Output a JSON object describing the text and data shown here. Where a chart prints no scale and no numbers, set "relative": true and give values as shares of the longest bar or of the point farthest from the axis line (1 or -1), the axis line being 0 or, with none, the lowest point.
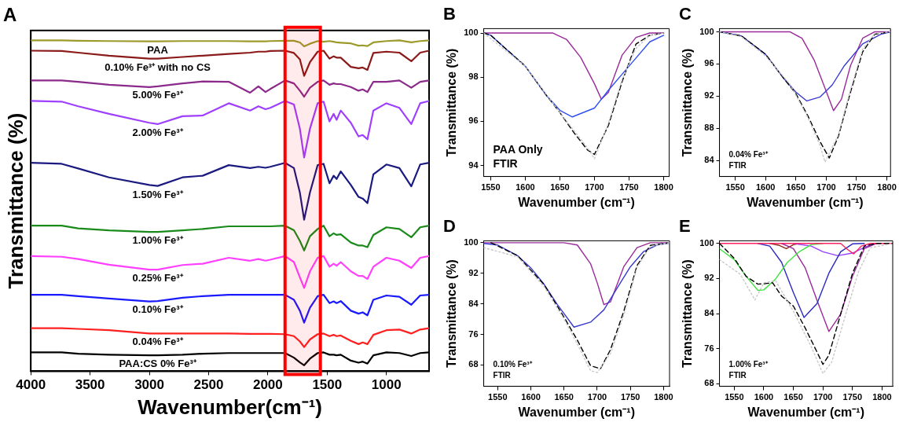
{
  "chart_data": [
    {
      "type": "line",
      "title": "A",
      "xlabel": "Wavenumber(cm⁻¹)",
      "ylabel": "Transmittance (%)",
      "relative": true,
      "tick_labels": "x",
      "grid": false,
      "legend": false,
      "marker": "none",
      "xlim": [
        4000,
        640
      ],
      "xticks": [
        4000,
        3500,
        3000,
        2500,
        2000,
        1500,
        1000
      ],
      "bands": [
        {
          "axis": "x",
          "from": 1855,
          "to": 1557,
          "color": "#ff0000"
        }
      ],
      "x": [
        4000,
        3740,
        3600,
        3340,
        3000,
        2930,
        2720,
        2550,
        2330,
        2150,
        2080,
        2020,
        1980,
        1855,
        1780,
        1730,
        1694,
        1645,
        1580,
        1530,
        1480,
        1445,
        1420,
        1385,
        1300,
        1235,
        1200,
        1160,
        1110,
        1000,
        890,
        790,
        715,
        640
      ],
      "series": [
        {
          "name": "PAA",
          "color": "#9c9a2a",
          "values": [
            1.0,
            1.0,
            0.999,
            0.998,
            0.997,
            0.997,
            0.998,
            0.998,
            0.998,
            0.997,
            0.997,
            0.997,
            0.998,
            0.999,
            0.999,
            0.994,
            0.982,
            0.99,
            0.998,
            0.996,
            0.998,
            0.996,
            0.994,
            0.993,
            0.991,
            0.984,
            0.985,
            0.983,
            0.994,
            0.998,
            1.0,
            0.994,
            0.998,
            1.0
          ]
        },
        {
          "name": "0.10% Fe³⁺ with no CS",
          "color": "#8b1a1a",
          "values": [
            0.969,
            0.968,
            0.963,
            0.954,
            0.945,
            0.945,
            0.95,
            0.954,
            0.959,
            0.963,
            0.966,
            0.966,
            0.968,
            0.969,
            0.962,
            0.943,
            0.893,
            0.934,
            0.966,
            0.969,
            0.945,
            0.952,
            0.948,
            0.948,
            0.92,
            0.916,
            0.918,
            0.911,
            0.962,
            0.966,
            0.963,
            0.937,
            0.963,
            0.969
          ]
        },
        {
          "name": "5.00% Fe³⁺",
          "color": "#8b2a8b",
          "values": [
            0.879,
            0.879,
            0.875,
            0.866,
            0.859,
            0.861,
            0.87,
            0.876,
            0.875,
            0.842,
            0.861,
            0.844,
            0.853,
            0.879,
            0.87,
            0.848,
            0.83,
            0.857,
            0.875,
            0.879,
            0.866,
            0.87,
            0.868,
            0.868,
            0.859,
            0.848,
            0.852,
            0.844,
            0.875,
            0.875,
            0.879,
            0.857,
            0.875,
            0.879
          ]
        },
        {
          "name": "2.00% Fe³⁺",
          "color": "#a040ff",
          "values": [
            0.817,
            0.815,
            0.801,
            0.778,
            0.751,
            0.747,
            0.771,
            0.773,
            0.81,
            0.788,
            0.801,
            0.792,
            0.796,
            0.817,
            0.806,
            0.733,
            0.646,
            0.733,
            0.81,
            0.815,
            0.755,
            0.778,
            0.76,
            0.788,
            0.751,
            0.71,
            0.714,
            0.701,
            0.788,
            0.81,
            0.796,
            0.747,
            0.81,
            0.817
          ]
        },
        {
          "name": "1.50% Fe³⁺",
          "color": "#1a1a80",
          "values": [
            0.63,
            0.627,
            0.613,
            0.586,
            0.563,
            0.56,
            0.586,
            0.591,
            0.623,
            0.614,
            0.618,
            0.615,
            0.618,
            0.63,
            0.614,
            0.54,
            0.458,
            0.54,
            0.623,
            0.627,
            0.568,
            0.591,
            0.581,
            0.604,
            0.563,
            0.527,
            0.522,
            0.508,
            0.595,
            0.625,
            0.614,
            0.559,
            0.625,
            0.63
          ]
        },
        {
          "name": "1.00% Fe³⁺",
          "color": "#1a8a1a",
          "values": [
            0.44,
            0.44,
            0.432,
            0.426,
            0.421,
            0.421,
            0.426,
            0.43,
            0.438,
            0.438,
            0.438,
            0.438,
            0.438,
            0.44,
            0.426,
            0.394,
            0.365,
            0.408,
            0.43,
            0.44,
            0.408,
            0.417,
            0.412,
            0.414,
            0.389,
            0.38,
            0.38,
            0.375,
            0.412,
            0.435,
            0.43,
            0.405,
            0.435,
            0.44
          ]
        },
        {
          "name": "0.25% Fe³⁺",
          "color": "#ff40ff",
          "values": [
            0.348,
            0.346,
            0.339,
            0.322,
            0.307,
            0.307,
            0.321,
            0.325,
            0.343,
            0.334,
            0.339,
            0.334,
            0.337,
            0.348,
            0.33,
            0.284,
            0.252,
            0.302,
            0.343,
            0.348,
            0.316,
            0.325,
            0.319,
            0.33,
            0.302,
            0.288,
            0.288,
            0.279,
            0.316,
            0.343,
            0.334,
            0.312,
            0.343,
            0.348
          ]
        },
        {
          "name": "0.10% Fe³⁺",
          "color": "#1a1aff",
          "values": [
            0.231,
            0.231,
            0.227,
            0.22,
            0.211,
            0.212,
            0.222,
            0.227,
            0.231,
            0.231,
            0.231,
            0.231,
            0.231,
            0.231,
            0.216,
            0.183,
            0.147,
            0.192,
            0.227,
            0.231,
            0.206,
            0.211,
            0.206,
            0.212,
            0.183,
            0.174,
            0.178,
            0.169,
            0.216,
            0.229,
            0.225,
            0.201,
            0.229,
            0.231
          ]
        },
        {
          "name": "0.04% Fe³⁺",
          "color": "#ff2020",
          "values": [
            0.13,
            0.13,
            0.128,
            0.124,
            0.114,
            0.114,
            0.114,
            0.114,
            0.114,
            0.113,
            0.113,
            0.113,
            0.113,
            0.112,
            0.106,
            0.09,
            0.073,
            0.096,
            0.112,
            0.114,
            0.106,
            0.11,
            0.106,
            0.108,
            0.092,
            0.082,
            0.087,
            0.082,
            0.11,
            0.124,
            0.126,
            0.114,
            0.126,
            0.13
          ]
        },
        {
          "name": "PAA:CS 0% Fe³⁺",
          "color": "#000000",
          "values": [
            0.057,
            0.057,
            0.053,
            0.05,
            0.048,
            0.048,
            0.05,
            0.053,
            0.055,
            0.055,
            0.055,
            0.055,
            0.055,
            0.055,
            0.041,
            0.027,
            0.018,
            0.038,
            0.055,
            0.057,
            0.05,
            0.05,
            0.048,
            0.05,
            0.032,
            0.026,
            0.029,
            0.023,
            0.048,
            0.057,
            0.055,
            0.046,
            0.055,
            0.057
          ]
        }
      ]
    },
    {
      "type": "line",
      "title": "B",
      "xlabel": "Wavenumber (cm⁻¹)",
      "ylabel": "Transmittance (%)",
      "grid": false,
      "legend": false,
      "marker": "none",
      "xlim": [
        1540,
        1808
      ],
      "xticks": [
        1550,
        1600,
        1650,
        1700,
        1750,
        1800
      ],
      "ylim": [
        93.5,
        100.2
      ],
      "yticks": [
        94,
        96,
        98,
        100
      ],
      "annotations": [
        "PAA Only",
        "FTIR"
      ],
      "series": [
        {
          "color": "#c8c8c8",
          "line_style": "dotted",
          "x": [
            1540,
            1600,
            1650,
            1670,
            1690,
            1700,
            1720,
            1740,
            1760,
            1780,
            1800
          ],
          "values": [
            100,
            98.5,
            96.4,
            95.6,
            94.8,
            94.3,
            95.9,
            97.9,
            99.3,
            99.9,
            100
          ]
        },
        {
          "color": "#000000",
          "line_style": "dashed",
          "x": [
            1540,
            1550,
            1600,
            1630,
            1650,
            1670,
            1690,
            1700,
            1720,
            1740,
            1760,
            1780,
            1800
          ],
          "values": [
            100,
            99.9,
            98.5,
            97.2,
            96.4,
            95.5,
            94.7,
            94.5,
            95.8,
            97.8,
            99.5,
            99.9,
            100
          ]
        },
        {
          "color": "#3050f0",
          "x": [
            1540,
            1550,
            1600,
            1630,
            1650,
            1668,
            1700,
            1720,
            1750,
            1780,
            1800
          ],
          "values": [
            100,
            99.9,
            98.5,
            97.2,
            96.5,
            96.2,
            96.6,
            97.4,
            98.5,
            99.6,
            99.9
          ]
        },
        {
          "color": "#9a2a9a",
          "x": [
            1540,
            1640,
            1660,
            1680,
            1700,
            1710,
            1720,
            1740,
            1760,
            1780,
            1800
          ],
          "values": [
            100,
            100,
            99.7,
            98.9,
            97.7,
            97.0,
            97.3,
            99.0,
            99.8,
            100,
            100
          ]
        }
      ]
    },
    {
      "type": "line",
      "title": "C",
      "xlabel": "Wavenumber (cm⁻¹)",
      "ylabel": "Transmittance (%)",
      "grid": false,
      "legend": false,
      "marker": "none",
      "xlim": [
        1524,
        1806
      ],
      "xticks": [
        1550,
        1600,
        1650,
        1700,
        1750,
        1800
      ],
      "ylim": [
        82,
        100.4
      ],
      "yticks": [
        84,
        88,
        92,
        96,
        100
      ],
      "annotations": [
        "0.04% Fe³⁺",
        "FTIR"
      ],
      "series": [
        {
          "color": "#c8c8c8",
          "line_style": "dotted",
          "x": [
            1524,
            1560,
            1600,
            1640,
            1670,
            1690,
            1698,
            1720,
            1740,
            1760,
            1780,
            1806
          ],
          "values": [
            100,
            99.4,
            97.0,
            93.5,
            89.3,
            85.8,
            83.8,
            87.2,
            92.8,
            97.8,
            99.8,
            100
          ]
        },
        {
          "color": "#000000",
          "line_style": "dashed",
          "x": [
            1524,
            1560,
            1600,
            1630,
            1650,
            1670,
            1690,
            1705,
            1720,
            1740,
            1760,
            1780,
            1806
          ],
          "values": [
            100,
            99.5,
            97.2,
            94.2,
            92.3,
            89.5,
            86.3,
            84.3,
            87,
            92.5,
            97.5,
            99.7,
            100
          ]
        },
        {
          "color": "#3a3ad0",
          "x": [
            1524,
            1560,
            1600,
            1630,
            1650,
            1668,
            1690,
            1710,
            1730,
            1760,
            1790,
            1806
          ],
          "values": [
            100,
            99.5,
            97.2,
            94.2,
            92.5,
            91.4,
            91.9,
            93.4,
            95.8,
            98.5,
            99.7,
            100
          ]
        },
        {
          "color": "#9a2a9a",
          "x": [
            1524,
            1640,
            1660,
            1680,
            1700,
            1712,
            1725,
            1740,
            1760,
            1780,
            1806
          ],
          "values": [
            100,
            100,
            99.2,
            96.5,
            92.6,
            90.2,
            91.6,
            95.8,
            99.2,
            100,
            100
          ]
        }
      ]
    },
    {
      "type": "line",
      "title": "D",
      "xlabel": "Wavenumber (cm⁻¹)",
      "ylabel": "Transmittance (%)",
      "grid": false,
      "legend": false,
      "marker": "none",
      "xlim": [
        1529,
        1809
      ],
      "xticks": [
        1550,
        1600,
        1650,
        1700,
        1750,
        1800
      ],
      "ylim": [
        62.4,
        100.5
      ],
      "yticks": [
        68,
        76,
        84,
        92,
        100
      ],
      "annotations": [
        "0.10% Fe³⁺",
        "FTIR"
      ],
      "series": [
        {
          "color": "#c8c8c8",
          "line_style": "dotted",
          "x": [
            1529,
            1580,
            1620,
            1650,
            1670,
            1690,
            1700,
            1720,
            1740,
            1760,
            1780,
            1809
          ],
          "values": [
            98.7,
            96.3,
            88.5,
            80,
            73.5,
            66.5,
            66,
            71,
            81,
            93.5,
            99,
            100
          ]
        },
        {
          "color": "#000000",
          "line_style": "dashed",
          "x": [
            1540,
            1580,
            1620,
            1650,
            1670,
            1690,
            1705,
            1720,
            1740,
            1760,
            1780,
            1809
          ],
          "values": [
            100,
            96.6,
            89,
            80.5,
            74.5,
            67.8,
            67,
            72,
            82,
            94,
            99.3,
            100
          ]
        },
        {
          "color": "#3a3ad0",
          "x": [
            1529,
            1550,
            1580,
            1600,
            1620,
            1640,
            1665,
            1690,
            1710,
            1730,
            1750,
            1770,
            1790,
            1809
          ],
          "values": [
            99.8,
            99.4,
            96.6,
            93.4,
            89.1,
            83.8,
            77.9,
            79.2,
            82.4,
            88.1,
            93.7,
            97.7,
            99.4,
            99.9
          ]
        },
        {
          "color": "#9a2a9a",
          "x": [
            1529,
            1650,
            1670,
            1690,
            1700,
            1710,
            1720,
            1740,
            1760,
            1780,
            1809
          ],
          "values": [
            100,
            100,
            99.4,
            94.5,
            89.5,
            83.8,
            84.5,
            93.7,
            98.7,
            100,
            100
          ]
        }
      ]
    },
    {
      "type": "line",
      "title": "E",
      "xlabel": "Wavenumber (cm⁻¹)",
      "ylabel": "Transmittance (%)",
      "grid": false,
      "legend": false,
      "marker": "none",
      "xlim": [
        1525,
        1818
      ],
      "xticks": [
        1550,
        1600,
        1650,
        1700,
        1750,
        1800
      ],
      "ylim": [
        67.4,
        100.6
      ],
      "yticks": [
        68,
        76,
        84,
        92,
        100
      ],
      "annotations": [
        "1.00% Fe³⁺",
        "FTIR"
      ],
      "series": [
        {
          "color": "#c8c8c8",
          "line_style": "dotted",
          "x": [
            1525,
            1560,
            1585,
            1600,
            1620,
            1650,
            1680,
            1700,
            1715,
            1740,
            1760,
            1780,
            1818
          ],
          "values": [
            96.3,
            93,
            87.1,
            91,
            91.5,
            84.5,
            76.5,
            70.3,
            73,
            84.5,
            93.5,
            99,
            100
          ]
        },
        {
          "color": "#000000",
          "line_style": "dashed",
          "x": [
            1525,
            1550,
            1570,
            1590,
            1615,
            1630,
            1650,
            1670,
            1690,
            1700,
            1710,
            1730,
            1750,
            1770,
            1790,
            1818
          ],
          "values": [
            100,
            96.6,
            92.5,
            90.7,
            91,
            88,
            85.7,
            80.7,
            75.2,
            72.4,
            74.5,
            83.9,
            93.2,
            99.4,
            100,
            100
          ]
        },
        {
          "color": "#ff2060",
          "x": [
            1525,
            1730,
            1740,
            1752,
            1765,
            1780,
            1818
          ],
          "values": [
            100,
            100,
            98.8,
            97.6,
            99.4,
            100,
            100
          ]
        },
        {
          "color": "#40e040",
          "x": [
            1525,
            1550,
            1570,
            1590,
            1600,
            1620,
            1640,
            1660,
            1680,
            1700
          ],
          "values": [
            98.8,
            96.3,
            92.5,
            89.3,
            89.4,
            91.9,
            95.7,
            98.1,
            99.7,
            100
          ]
        },
        {
          "color": "#2a2ac0",
          "x": [
            1590,
            1610,
            1630,
            1650,
            1668,
            1690,
            1710,
            1730,
            1750,
            1770
          ],
          "values": [
            100,
            99.4,
            95.7,
            88.8,
            83.1,
            86.3,
            93.2,
            98.1,
            99.9,
            100
          ]
        },
        {
          "color": "#9a2a9a",
          "x": [
            1630,
            1650,
            1670,
            1690,
            1710,
            1730,
            1750,
            1770,
            1790
          ],
          "values": [
            100,
            98.8,
            94.4,
            87,
            79.9,
            83.9,
            92.5,
            98.8,
            100
          ]
        },
        {
          "color": "#9a40ff",
          "x": [
            1650,
            1680,
            1700,
            1725,
            1750,
            1770,
            1790
          ],
          "values": [
            100,
            99.4,
            98.1,
            97.2,
            97.8,
            99.1,
            100
          ]
        },
        {
          "color": "#8b2a1a",
          "x": [
            1610,
            1625,
            1638,
            1650,
            1660
          ],
          "values": [
            100,
            99.6,
            98.8,
            99.7,
            100
          ]
        }
      ]
    }
  ]
}
